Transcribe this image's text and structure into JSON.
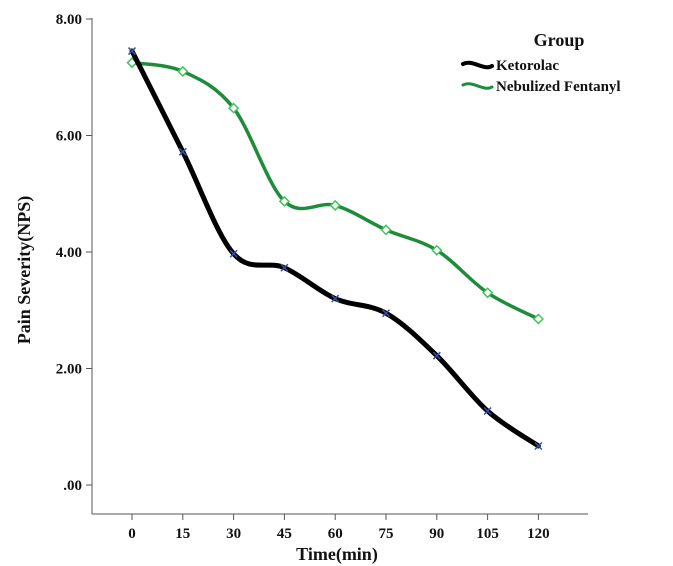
{
  "chart_data": {
    "type": "line",
    "xlabel": "Time(min)",
    "ylabel": "Pain Severity(NPS)",
    "x": [
      0,
      15,
      30,
      45,
      60,
      75,
      90,
      105,
      120
    ],
    "x_tick_labels": [
      "0",
      "15",
      "30",
      "45",
      "60",
      "75",
      "90",
      "105",
      "120"
    ],
    "ylim": [
      0,
      8
    ],
    "y_ticks": [
      0,
      2,
      4,
      6,
      8
    ],
    "y_tick_labels": [
      ".00",
      "2.00",
      "4.00",
      "6.00",
      "8.00"
    ],
    "grid": false,
    "legend": {
      "title": "Group",
      "position": "top-right"
    },
    "series": [
      {
        "name": "Ketorolac",
        "color": "#000000",
        "marker_color": "#3a4fa0",
        "marker": "x",
        "values": [
          7.45,
          5.72,
          3.97,
          3.73,
          3.2,
          2.95,
          2.22,
          1.27,
          0.67
        ]
      },
      {
        "name": "Nebulized Fentanyl",
        "color": "#1e8c3a",
        "marker_color": "#3cc55a",
        "marker": "diamond",
        "values": [
          7.25,
          7.1,
          6.47,
          4.87,
          4.8,
          4.38,
          4.03,
          3.3,
          2.85
        ]
      }
    ]
  }
}
